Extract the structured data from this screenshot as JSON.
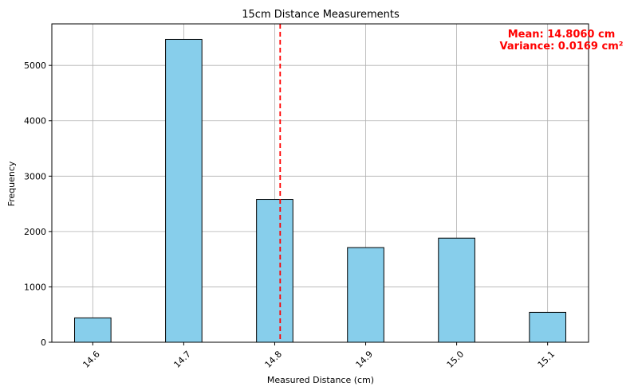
{
  "chart_data": {
    "type": "bar",
    "title": "15cm Distance Measurements",
    "xlabel": "Measured Distance (cm)",
    "ylabel": "Frequency",
    "categories": [
      "14.6",
      "14.7",
      "14.8",
      "14.9",
      "15.0",
      "15.1"
    ],
    "x": [
      14.6,
      14.7,
      14.8,
      14.9,
      15.0,
      15.1
    ],
    "values": [
      440,
      5470,
      2580,
      1710,
      1880,
      540
    ],
    "xlim": [
      14.555,
      15.145
    ],
    "ylim": [
      0,
      5750
    ],
    "yticks": [
      0,
      1000,
      2000,
      3000,
      4000,
      5000
    ],
    "mean_line": 14.806,
    "grid": true,
    "colors": {
      "bar": "#87ceeb",
      "edge": "#000000",
      "mean": "#ff0000",
      "grid": "#b0b0b0"
    },
    "annotations": [
      "Mean: 14.8060 cm",
      "Variance: 0.0169 cm²"
    ]
  }
}
